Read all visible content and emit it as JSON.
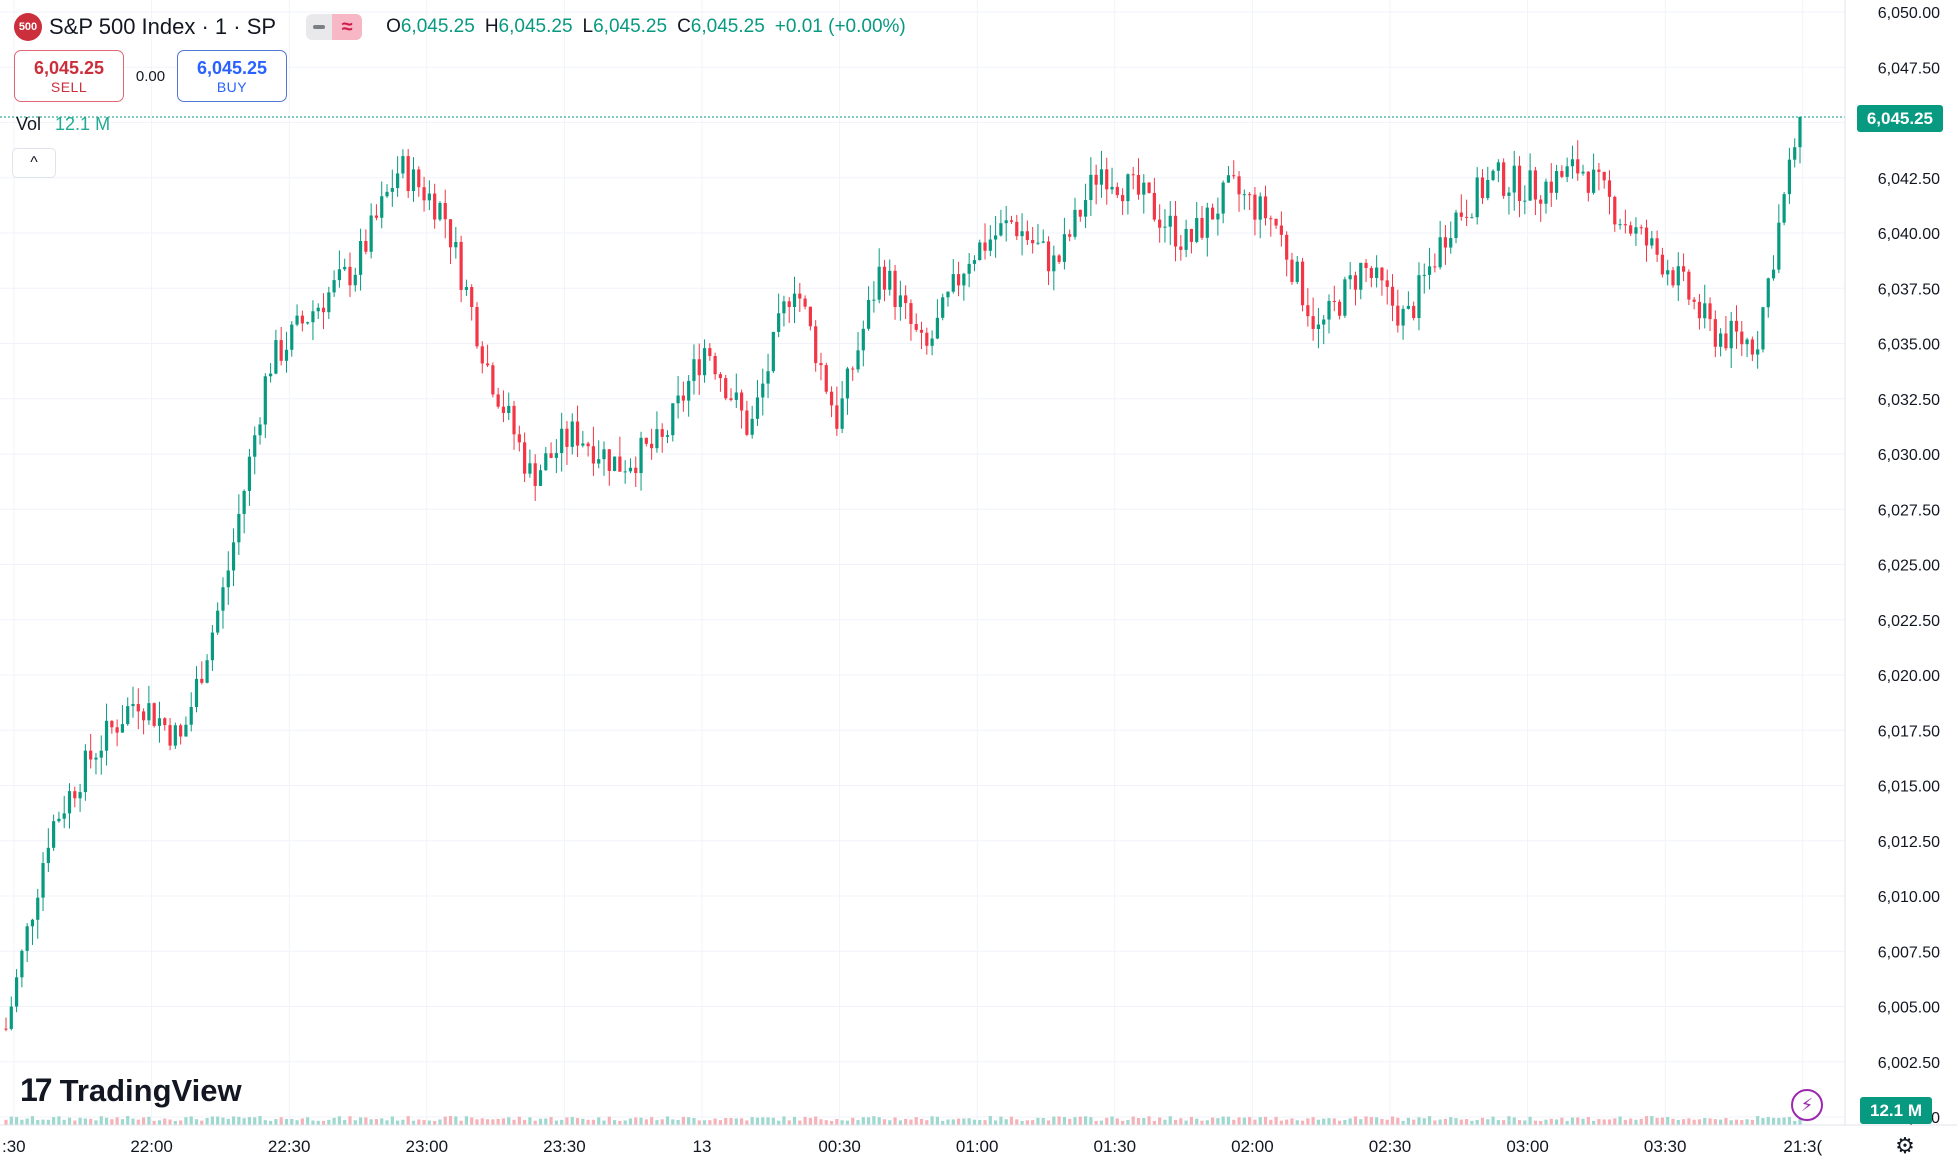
{
  "header": {
    "symbol_logo": "500",
    "symbol_title": "S&P 500 Index · 1 · SP",
    "ohlc": {
      "o_label": "O",
      "o": "6,045.25",
      "h_label": "H",
      "h": "6,045.25",
      "l_label": "L",
      "l": "6,045.25",
      "c_label": "C",
      "c": "6,045.25",
      "change": "+0.01 (+0.00%)"
    },
    "toggle_icons": [
      "minus-icon",
      "wave-icon"
    ],
    "toggle_wave_glyph": "≈"
  },
  "trade": {
    "sell_price": "6,045.25",
    "sell_label": "SELL",
    "spread": "0.00",
    "buy_price": "6,045.25",
    "buy_label": "BUY"
  },
  "volume": {
    "label": "Vol",
    "value": "12.1 M"
  },
  "collapse_glyph": "^",
  "brand": {
    "mark": "17",
    "name": "TradingView"
  },
  "bolt_glyph": "⚡",
  "gear_glyph": "⚙",
  "price_badge": "6,045.25",
  "volume_badge": "12.1 M",
  "colors": {
    "up": "#089981",
    "down": "#f23645",
    "grid": "#f0f3fa",
    "text": "#131722"
  },
  "chart_data": {
    "type": "candlestick",
    "x_ticks": [
      ":30",
      "22:00",
      "22:30",
      "23:00",
      "23:30",
      "13",
      "00:30",
      "01:00",
      "01:30",
      "02:00",
      "02:30",
      "03:00",
      "03:30",
      "21:3("
    ],
    "y_ticks": [
      "6,050.00",
      "6,047.50",
      "6,045.00",
      "6,042.50",
      "6,040.00",
      "6,037.50",
      "6,035.00",
      "6,032.50",
      "6,030.00",
      "6,027.50",
      "6,025.00",
      "6,022.50",
      "6,020.00",
      "6,017.50",
      "6,015.00",
      "6,012.50",
      "6,010.00",
      "6,007.50",
      "6,005.00",
      "6,002.50",
      "6,000"
    ],
    "ylim": [
      6000,
      6050
    ],
    "last_price": 6045.25,
    "grid": true,
    "series": [
      {
        "t": "21:30",
        "v": 6004.0
      },
      {
        "t": "21:40",
        "v": 6013.0
      },
      {
        "t": "21:50",
        "v": 6016.5
      },
      {
        "t": "22:00",
        "v": 6019.0
      },
      {
        "t": "22:10",
        "v": 6017.0
      },
      {
        "t": "22:20",
        "v": 6024.0
      },
      {
        "t": "22:30",
        "v": 6034.0
      },
      {
        "t": "22:40",
        "v": 6036.5
      },
      {
        "t": "22:50",
        "v": 6038.5
      },
      {
        "t": "23:00",
        "v": 6043.0
      },
      {
        "t": "23:05",
        "v": 6041.0
      },
      {
        "t": "23:15",
        "v": 6034.0
      },
      {
        "t": "23:25",
        "v": 6029.0
      },
      {
        "t": "23:35",
        "v": 6031.0
      },
      {
        "t": "23:45",
        "v": 6029.5
      },
      {
        "t": "23:55",
        "v": 6030.5
      },
      {
        "t": "00:05",
        "v": 6035.0
      },
      {
        "t": "00:15",
        "v": 6031.0
      },
      {
        "t": "00:25",
        "v": 6038.0
      },
      {
        "t": "00:35",
        "v": 6031.5
      },
      {
        "t": "00:45",
        "v": 6038.5
      },
      {
        "t": "00:55",
        "v": 6034.5
      },
      {
        "t": "01:05",
        "v": 6039.0
      },
      {
        "t": "01:15",
        "v": 6040.5
      },
      {
        "t": "01:25",
        "v": 6038.5
      },
      {
        "t": "01:35",
        "v": 6043.0
      },
      {
        "t": "01:45",
        "v": 6041.5
      },
      {
        "t": "01:55",
        "v": 6039.5
      },
      {
        "t": "02:05",
        "v": 6042.0
      },
      {
        "t": "02:15",
        "v": 6040.5
      },
      {
        "t": "02:25",
        "v": 6035.5
      },
      {
        "t": "02:35",
        "v": 6038.5
      },
      {
        "t": "02:45",
        "v": 6036.0
      },
      {
        "t": "02:55",
        "v": 6040.5
      },
      {
        "t": "03:05",
        "v": 6042.5
      },
      {
        "t": "03:15",
        "v": 6042.0
      },
      {
        "t": "03:25",
        "v": 6043.0
      },
      {
        "t": "03:35",
        "v": 6040.5
      },
      {
        "t": "03:45",
        "v": 6038.5
      },
      {
        "t": "03:55",
        "v": 6035.5
      },
      {
        "t": "04:02",
        "v": 6035.0
      },
      {
        "t": "04:05",
        "v": 6045.25
      }
    ]
  }
}
